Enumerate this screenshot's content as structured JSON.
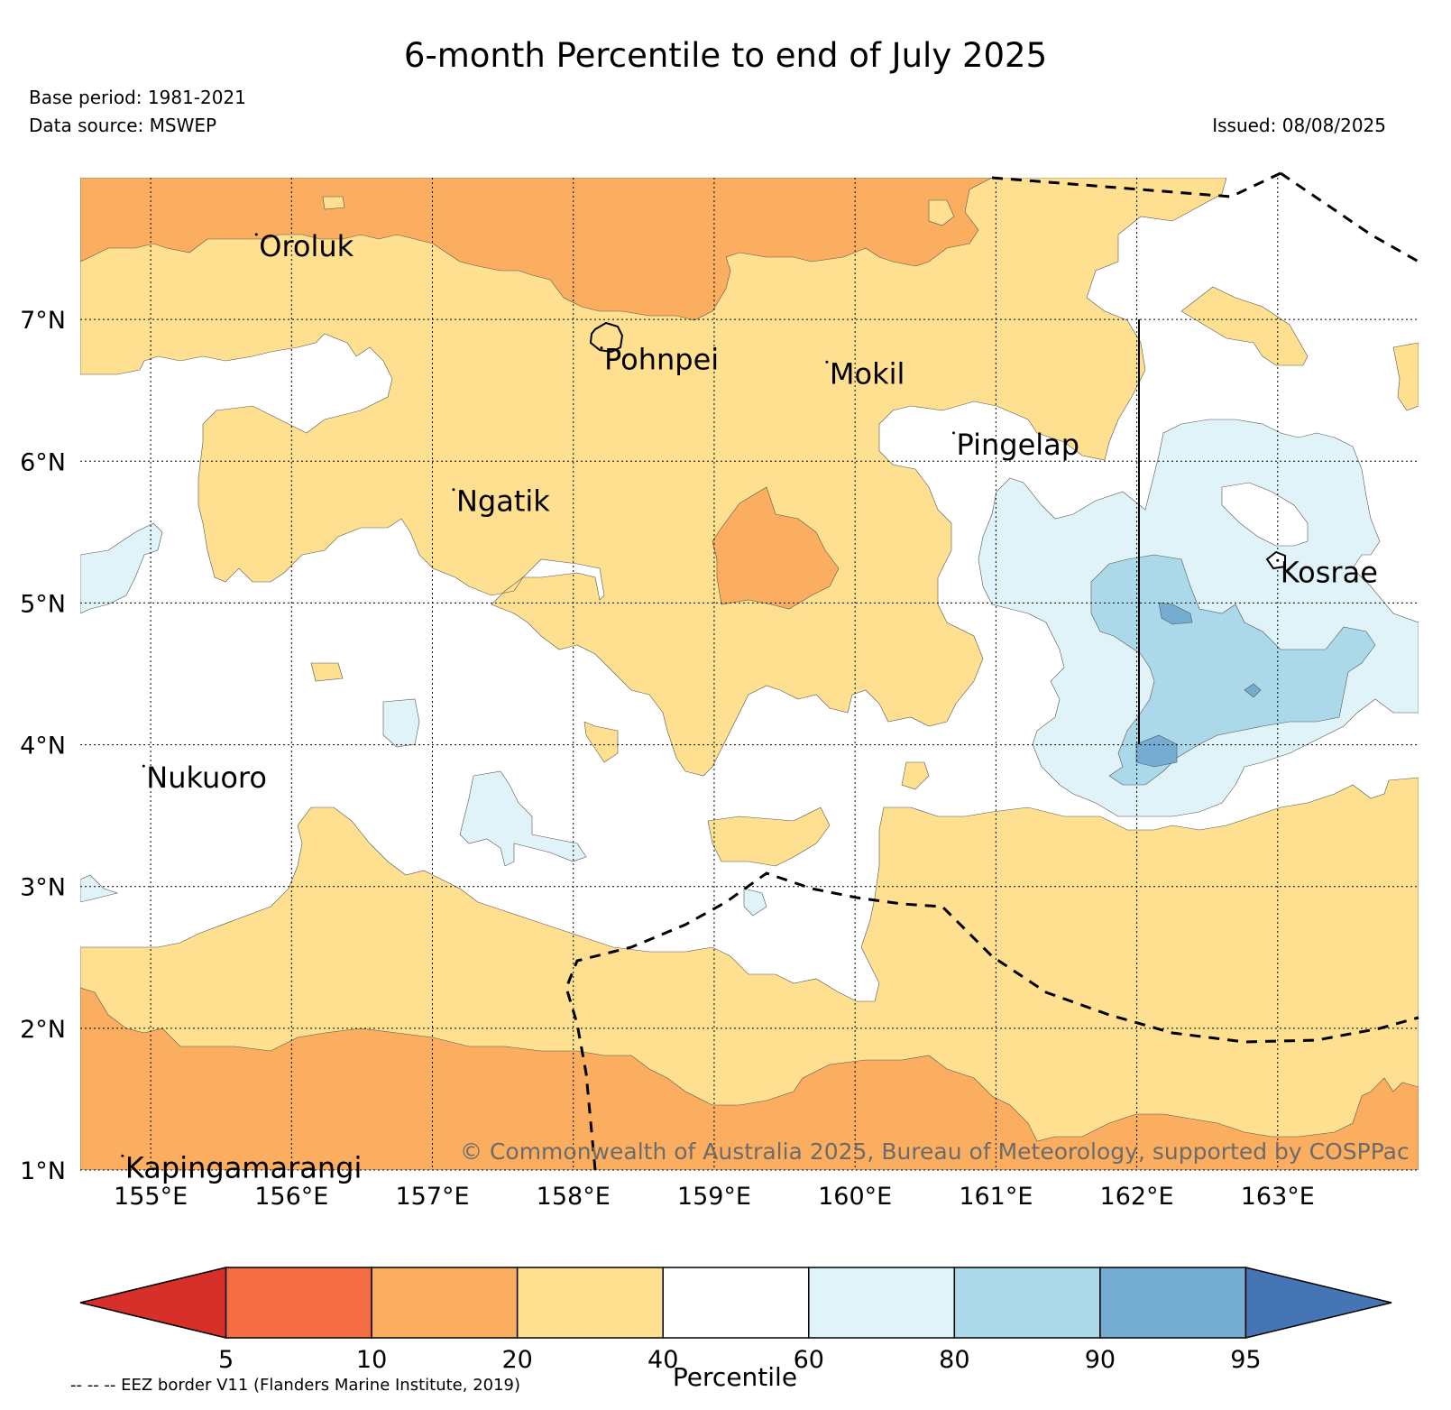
{
  "header": {
    "title": "6-month Percentile to end of July 2025",
    "base_period": "Base period: 1981-2021",
    "data_source": "Data source: MSWEP",
    "issued": "Issued: 08/08/2025"
  },
  "map": {
    "lon_range": [
      154.5,
      164.0
    ],
    "lat_range": [
      1.0,
      8.0
    ],
    "lon_ticks": [
      {
        "value": 155,
        "label": "155°E"
      },
      {
        "value": 156,
        "label": "156°E"
      },
      {
        "value": 157,
        "label": "157°E"
      },
      {
        "value": 158,
        "label": "158°E"
      },
      {
        "value": 159,
        "label": "159°E"
      },
      {
        "value": 160,
        "label": "160°E"
      },
      {
        "value": 161,
        "label": "161°E"
      },
      {
        "value": 162,
        "label": "162°E"
      },
      {
        "value": 163,
        "label": "163°E"
      }
    ],
    "lat_ticks": [
      {
        "value": 1,
        "label": "1°N"
      },
      {
        "value": 2,
        "label": "2°N"
      },
      {
        "value": 3,
        "label": "3°N"
      },
      {
        "value": 4,
        "label": "4°N"
      },
      {
        "value": 5,
        "label": "5°N"
      },
      {
        "value": 6,
        "label": "6°N"
      },
      {
        "value": 7,
        "label": "7°N"
      }
    ],
    "places": [
      {
        "name": "Oroluk",
        "lon": 155.75,
        "lat": 7.6
      },
      {
        "name": "Pohnpei",
        "lon": 158.2,
        "lat": 6.8
      },
      {
        "name": "Mokil",
        "lon": 159.8,
        "lat": 6.7
      },
      {
        "name": "Pingelap",
        "lon": 160.7,
        "lat": 6.2
      },
      {
        "name": "Ngatik",
        "lon": 157.15,
        "lat": 5.8
      },
      {
        "name": "Kosrae",
        "lon": 163.0,
        "lat": 5.3
      },
      {
        "name": "Nukuoro",
        "lon": 154.95,
        "lat": 3.85
      },
      {
        "name": "Kapingamarangi",
        "lon": 154.8,
        "lat": 1.1
      }
    ],
    "grid": true
  },
  "colorbar": {
    "label": "Percentile",
    "ticks": [
      "5",
      "10",
      "20",
      "40",
      "60",
      "80",
      "90",
      "95"
    ],
    "colors": [
      "#d7302a",
      "#f46c43",
      "#fcae60",
      "#fee090",
      "#ffffff",
      "#e0f3f8",
      "#abd9e9",
      "#74add1",
      "#4575b4"
    ]
  },
  "copyright": "© Commonwealth of Australia 2025, Bureau of Meteorology, supported by COSPPac",
  "eez_note": "-- -- -- EEZ border V11 (Flanders Marine Institute, 2019)"
}
